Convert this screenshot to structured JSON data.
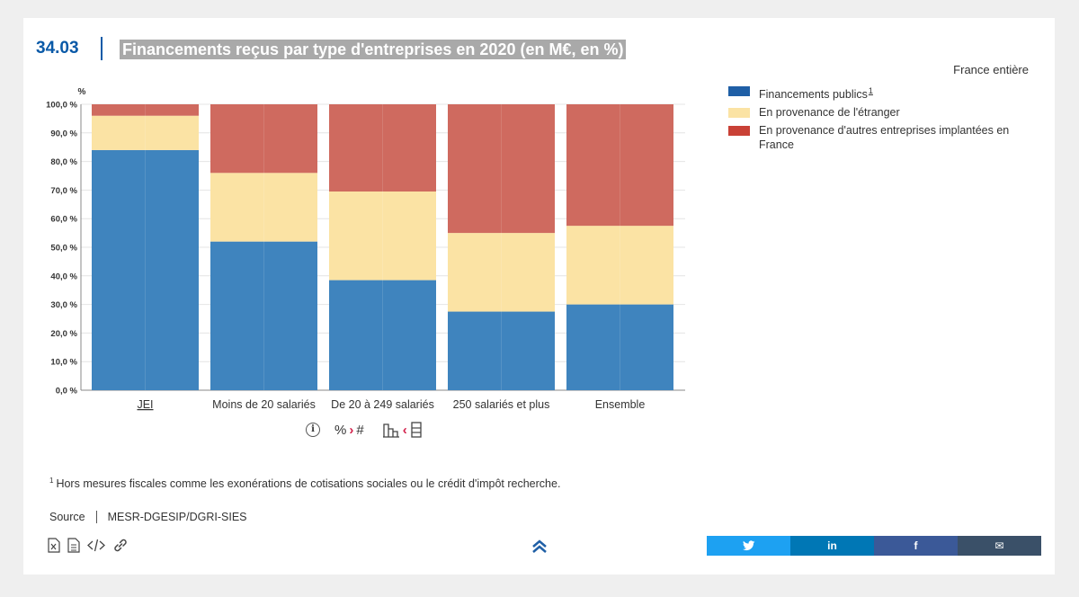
{
  "header": {
    "figure_number": "34.03",
    "title": "Financements reçus par type d'entreprises en 2020 (en M€, en %)",
    "scope": "France entière"
  },
  "legend": {
    "items": [
      {
        "label": "Financements publics",
        "note": "1",
        "color": "#3f84be"
      },
      {
        "label": "En provenance de l'étranger",
        "note": "",
        "color": "#fbe3a4"
      },
      {
        "label": "En provenance d'autres entreprises implantées en France",
        "note": "",
        "color": "#cf6a5f"
      }
    ]
  },
  "chart_data": {
    "type": "bar",
    "stacked": true,
    "ylabel": "%",
    "ylim": [
      0,
      100
    ],
    "yticks": [
      "0,0 %",
      "10,0 %",
      "20,0 %",
      "30,0 %",
      "40,0 %",
      "50,0 %",
      "60,0 %",
      "70,0 %",
      "80,0 %",
      "90,0 %",
      "100,0 %"
    ],
    "categories": [
      "JEI",
      "Moins de 20 salariés",
      "De 20 à 249 salariés",
      "250 salariés et plus",
      "Ensemble"
    ],
    "series": [
      {
        "name": "Financements publics",
        "color": "#3f84be",
        "values": [
          84,
          52,
          38.5,
          27.5,
          30
        ]
      },
      {
        "name": "En provenance de l'étranger",
        "color": "#fbe3a4",
        "values": [
          12,
          24,
          31,
          27.5,
          27.5
        ]
      },
      {
        "name": "En provenance d'autres entreprises implantées en France",
        "color": "#cf6a5f",
        "values": [
          4,
          24,
          30.5,
          45,
          42.5
        ]
      }
    ],
    "grid": true
  },
  "tools": {
    "info": "i",
    "percent_symbol": "%",
    "arrow": "›",
    "count_symbol": "#",
    "arrow_left": "‹"
  },
  "footnote": {
    "marker": "1",
    "text": "Hors mesures fiscales comme les exonérations de cotisations sociales ou le crédit d'impôt recherche."
  },
  "source": {
    "label": "Source",
    "value": "MESR-DGESIP/DGRI-SIES"
  },
  "share": [
    {
      "name": "twitter",
      "glyph": "🐦",
      "color": "#1da1f2"
    },
    {
      "name": "linkedin",
      "glyph": "in",
      "color": "#0077b5"
    },
    {
      "name": "facebook",
      "glyph": "f",
      "color": "#3b5998"
    },
    {
      "name": "email",
      "glyph": "✉",
      "color": "#3a5068"
    }
  ]
}
